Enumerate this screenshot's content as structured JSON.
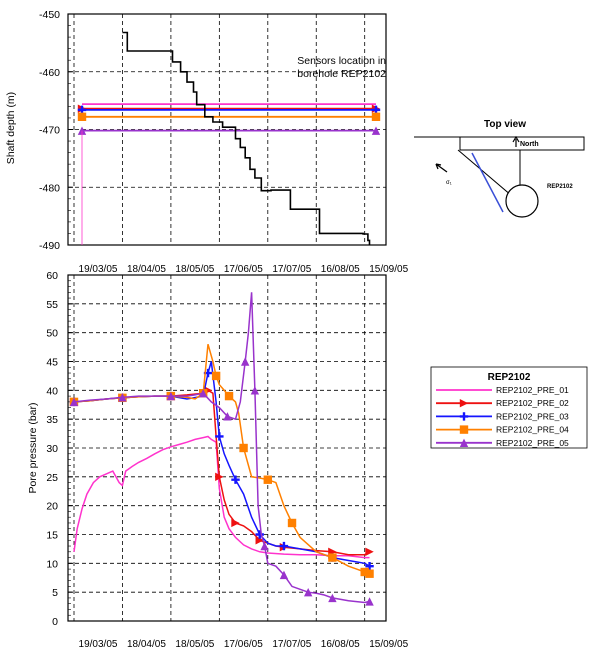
{
  "colors": {
    "axis": "#000000",
    "grid": "#000000",
    "shaft": "#000000",
    "topview_line": "#3a4fd6",
    "PRE_01": "#ff33cc",
    "PRE_02": "#ee1111",
    "PRE_03": "#1515ff",
    "PRE_04": "#ff8000",
    "PRE_05": "#9933cc"
  },
  "top_view": {
    "title": "Top view",
    "north_label": "North",
    "borehole_label": "REP2102",
    "stress_label": "σ₁"
  },
  "legend": {
    "title": "REP2102",
    "placement": "right",
    "entries": [
      "REP2102_PRE_01",
      "REP2102_PRE_02",
      "REP2102_PRE_03",
      "REP2102_PRE_04",
      "REP2102_PRE_05"
    ]
  },
  "chart_data": [
    {
      "type": "line",
      "ylabel": "Shaft depth (m)",
      "xlabel": "",
      "annotation": "Sensors location in borehole REP2102",
      "ylim": [
        -490,
        -450
      ],
      "x_ticks": [
        "19/03/05",
        "18/04/05",
        "18/05/05",
        "17/06/05",
        "17/07/05",
        "16/08/05",
        "15/09/05"
      ],
      "y_ticks": [
        -450,
        -460,
        -470,
        -480,
        -490
      ],
      "grid": true,
      "shaft_depth": {
        "x": [
          3.0,
          3.3,
          3.3,
          6.1,
          6.1,
          6.6,
          6.6,
          7.0,
          7.0,
          7.4,
          7.4,
          7.6,
          7.6,
          8.1,
          8.1,
          8.6,
          8.6,
          9.2,
          9.2,
          10.0,
          10.0,
          10.3,
          10.3,
          10.6,
          10.6,
          10.9,
          10.9,
          11.2,
          11.2,
          11.6,
          11.6,
          12.2,
          12.2,
          13.4,
          13.4,
          15.2,
          15.2,
          17.9,
          17.9,
          18.2,
          18.2,
          18.3,
          18.3
        ],
        "y": [
          -453.2,
          -453.2,
          -456.4,
          -456.4,
          -458.3,
          -458.3,
          -460.0,
          -460.0,
          -461.8,
          -461.8,
          -463.5,
          -463.5,
          -465.7,
          -465.7,
          -467.8,
          -467.8,
          -468.7,
          -468.7,
          -469.6,
          -469.6,
          -471.6,
          -471.6,
          -473.1,
          -473.1,
          -474.9,
          -474.9,
          -476.9,
          -476.9,
          -478.4,
          -478.4,
          -480.6,
          -480.6,
          -480.5,
          -480.5,
          -483.8,
          -483.8,
          -488.0,
          -488.0,
          -488.1,
          -488.1,
          -489.2,
          -489.2,
          -490.0
        ]
      },
      "series": [
        {
          "name": "REP2102_PRE_01",
          "depth": -465.6
        },
        {
          "name": "REP2102_PRE_02",
          "depth": -466.4
        },
        {
          "name": "REP2102_PRE_03",
          "depth": -466.6
        },
        {
          "name": "REP2102_PRE_04",
          "depth": -467.8
        },
        {
          "name": "REP2102_PRE_05",
          "depth": -470.2
        }
      ]
    },
    {
      "type": "line",
      "ylabel": "Pore pressure (bar)",
      "xlabel": "",
      "ylim": [
        0,
        60
      ],
      "x_ticks": [
        "19/03/05",
        "18/04/05",
        "18/05/05",
        "17/06/05",
        "17/07/05",
        "16/08/05",
        "15/09/05"
      ],
      "y_ticks": [
        0,
        5,
        10,
        15,
        20,
        25,
        30,
        35,
        40,
        45,
        50,
        55,
        60
      ],
      "grid": true,
      "series": [
        {
          "name": "REP2102_PRE_01",
          "marker": "none",
          "x": [
            0.0,
            0.2,
            0.5,
            0.8,
            1.2,
            1.6,
            2.0,
            2.4,
            2.8,
            3.0,
            3.2,
            3.6,
            4.0,
            4.5,
            5.0,
            5.5,
            6.0,
            6.5,
            7.0,
            7.5,
            8.0,
            8.3,
            8.5,
            8.8,
            9.0,
            9.3,
            9.6,
            10.0,
            10.5,
            11.0,
            11.5,
            12.0,
            13.0,
            14.0,
            15.0,
            16.0,
            17.0,
            18.0,
            18.3
          ],
          "y": [
            12.0,
            16.0,
            19.5,
            22.0,
            24.0,
            25.0,
            25.5,
            26.0,
            24.0,
            23.5,
            26.0,
            26.8,
            27.5,
            28.2,
            29.0,
            29.7,
            30.2,
            30.6,
            31.0,
            31.5,
            31.8,
            32.0,
            31.5,
            31.0,
            23.0,
            18.0,
            16.0,
            14.5,
            13.2,
            12.5,
            12.0,
            11.8,
            11.6,
            11.5,
            11.5,
            11.3,
            11.3,
            11.0,
            11.0
          ]
        },
        {
          "name": "REP2102_PRE_02",
          "marker": "triangle-right",
          "x": [
            0.0,
            1.0,
            2.0,
            3.0,
            4.0,
            5.0,
            6.0,
            7.0,
            8.0,
            8.3,
            8.6,
            8.8,
            9.0,
            9.3,
            9.6,
            10.0,
            10.5,
            11.0,
            11.5,
            12.0,
            12.5,
            13.0,
            14.0,
            15.0,
            16.0,
            17.0,
            18.0,
            18.3
          ],
          "y": [
            38.0,
            38.2,
            38.5,
            38.7,
            38.9,
            39.0,
            39.0,
            39.2,
            39.5,
            40.0,
            39.5,
            32.0,
            25.0,
            21.0,
            18.5,
            17.0,
            16.5,
            15.5,
            14.0,
            13.5,
            13.0,
            12.8,
            12.5,
            12.2,
            12.0,
            11.5,
            11.5,
            12.0
          ]
        },
        {
          "name": "REP2102_PRE_03",
          "marker": "plus",
          "x": [
            0.0,
            1.0,
            2.0,
            3.0,
            4.0,
            5.0,
            6.0,
            7.0,
            8.0,
            8.3,
            8.5,
            8.8,
            9.0,
            9.3,
            9.6,
            10.0,
            10.5,
            11.0,
            11.5,
            12.0,
            12.5,
            13.0,
            14.0,
            15.0,
            16.0,
            17.0,
            18.0,
            18.3
          ],
          "y": [
            38.0,
            38.2,
            38.5,
            38.7,
            38.9,
            39.0,
            39.0,
            38.5,
            39.0,
            43.0,
            45.0,
            38.0,
            32.0,
            29.0,
            27.0,
            24.5,
            22.0,
            18.0,
            15.0,
            13.5,
            13.0,
            13.0,
            12.5,
            12.0,
            11.0,
            10.5,
            10.0,
            9.5
          ]
        },
        {
          "name": "REP2102_PRE_04",
          "marker": "square",
          "x": [
            0.0,
            1.0,
            2.0,
            3.0,
            4.0,
            5.0,
            6.0,
            7.0,
            7.5,
            8.0,
            8.3,
            8.6,
            8.8,
            9.0,
            9.3,
            9.6,
            10.0,
            10.2,
            10.5,
            11.0,
            11.5,
            12.0,
            12.5,
            13.0,
            13.5,
            14.0,
            15.0,
            16.0,
            17.0,
            17.5,
            18.0,
            18.3
          ],
          "y": [
            38.0,
            38.2,
            38.5,
            38.7,
            38.9,
            39.0,
            39.0,
            38.8,
            38.5,
            39.5,
            48.0,
            45.0,
            42.5,
            41.0,
            40.0,
            39.0,
            38.0,
            36.0,
            30.0,
            25.0,
            24.8,
            24.5,
            24.0,
            20.0,
            17.0,
            14.5,
            12.0,
            11.0,
            9.5,
            9.0,
            8.5,
            8.2
          ]
        },
        {
          "name": "REP2102_PRE_05",
          "marker": "triangle-up",
          "x": [
            0.0,
            1.0,
            2.0,
            3.0,
            4.0,
            5.0,
            6.0,
            7.0,
            7.5,
            8.0,
            8.5,
            9.0,
            9.5,
            10.0,
            10.3,
            10.6,
            10.8,
            11.0,
            11.2,
            11.4,
            11.6,
            11.8,
            12.0,
            12.5,
            13.0,
            13.5,
            14.0,
            14.5,
            15.0,
            15.5,
            16.0,
            17.0,
            18.0,
            18.3
          ],
          "y": [
            38.0,
            38.3,
            38.5,
            38.8,
            39.0,
            39.0,
            39.0,
            39.0,
            39.2,
            39.5,
            38.0,
            37.0,
            35.5,
            35.0,
            38.0,
            45.0,
            50.0,
            57.0,
            40.0,
            20.0,
            15.0,
            13.0,
            10.0,
            9.5,
            8.0,
            6.0,
            5.5,
            5.0,
            4.8,
            4.5,
            4.0,
            3.5,
            3.2,
            3.4
          ]
        }
      ]
    }
  ]
}
